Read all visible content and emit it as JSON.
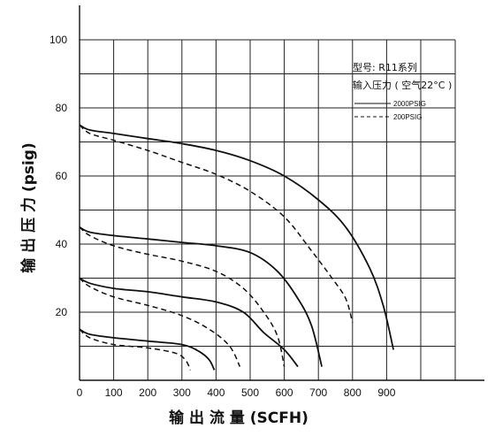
{
  "chart_data": {
    "type": "line",
    "xlabel": "输 出 流 量 (SCFH)",
    "ylabel": "输 出 压 力 (psig)",
    "xlim": [
      0,
      1100
    ],
    "ylim": [
      0,
      100
    ],
    "x_ticks": [
      0,
      100,
      200,
      300,
      400,
      500,
      600,
      700,
      800,
      900
    ],
    "y_ticks": [
      20,
      40,
      60,
      80,
      100
    ],
    "grid": true,
    "legend": {
      "placement": "top-right",
      "model_line": "型号: R11系列",
      "pressure_line": "输入压力 ( 空气22°C )",
      "entries": [
        {
          "label": "2000PSIG",
          "style": "solid"
        },
        {
          "label": "200PSIG",
          "style": "dashed"
        }
      ]
    },
    "series": [
      {
        "style": "solid",
        "points": [
          [
            0,
            75
          ],
          [
            30,
            73.5
          ],
          [
            100,
            72.5
          ],
          [
            200,
            71
          ],
          [
            300,
            69.5
          ],
          [
            400,
            67.5
          ],
          [
            500,
            64.5
          ],
          [
            600,
            60
          ],
          [
            700,
            53
          ],
          [
            780,
            45
          ],
          [
            850,
            33
          ],
          [
            890,
            22
          ],
          [
            920,
            9
          ]
        ]
      },
      {
        "style": "dashed",
        "points": [
          [
            0,
            75
          ],
          [
            30,
            72.5
          ],
          [
            100,
            70.5
          ],
          [
            200,
            67.5
          ],
          [
            300,
            64
          ],
          [
            400,
            60.5
          ],
          [
            500,
            55.5
          ],
          [
            600,
            48
          ],
          [
            680,
            38
          ],
          [
            740,
            30
          ],
          [
            780,
            24
          ],
          [
            800,
            17
          ]
        ]
      },
      {
        "style": "solid",
        "points": [
          [
            0,
            45
          ],
          [
            30,
            43.5
          ],
          [
            100,
            42.5
          ],
          [
            200,
            41.5
          ],
          [
            300,
            40.5
          ],
          [
            400,
            39.5
          ],
          [
            500,
            37.5
          ],
          [
            580,
            32
          ],
          [
            640,
            24
          ],
          [
            680,
            16
          ],
          [
            710,
            4
          ]
        ]
      },
      {
        "style": "dashed",
        "points": [
          [
            0,
            45
          ],
          [
            30,
            42.5
          ],
          [
            100,
            39.5
          ],
          [
            200,
            37
          ],
          [
            300,
            35
          ],
          [
            400,
            32
          ],
          [
            480,
            27
          ],
          [
            540,
            20
          ],
          [
            580,
            13
          ],
          [
            600,
            4
          ]
        ]
      },
      {
        "style": "solid",
        "points": [
          [
            0,
            30
          ],
          [
            30,
            28.5
          ],
          [
            100,
            27
          ],
          [
            200,
            26
          ],
          [
            300,
            24.5
          ],
          [
            400,
            23
          ],
          [
            480,
            20
          ],
          [
            540,
            14
          ],
          [
            600,
            9
          ],
          [
            640,
            4
          ]
        ]
      },
      {
        "style": "dashed",
        "points": [
          [
            0,
            30
          ],
          [
            30,
            27.5
          ],
          [
            100,
            24.5
          ],
          [
            200,
            22
          ],
          [
            300,
            19
          ],
          [
            380,
            15
          ],
          [
            440,
            10
          ],
          [
            470,
            4
          ]
        ]
      },
      {
        "style": "solid",
        "points": [
          [
            0,
            15
          ],
          [
            30,
            13.5
          ],
          [
            100,
            12.5
          ],
          [
            200,
            11.5
          ],
          [
            300,
            10.5
          ],
          [
            350,
            8.5
          ],
          [
            380,
            6
          ],
          [
            395,
            3
          ]
        ]
      },
      {
        "style": "dashed",
        "points": [
          [
            0,
            15
          ],
          [
            30,
            12.5
          ],
          [
            100,
            10.5
          ],
          [
            200,
            9.5
          ],
          [
            280,
            8
          ],
          [
            310,
            6
          ],
          [
            325,
            3
          ]
        ]
      }
    ]
  }
}
